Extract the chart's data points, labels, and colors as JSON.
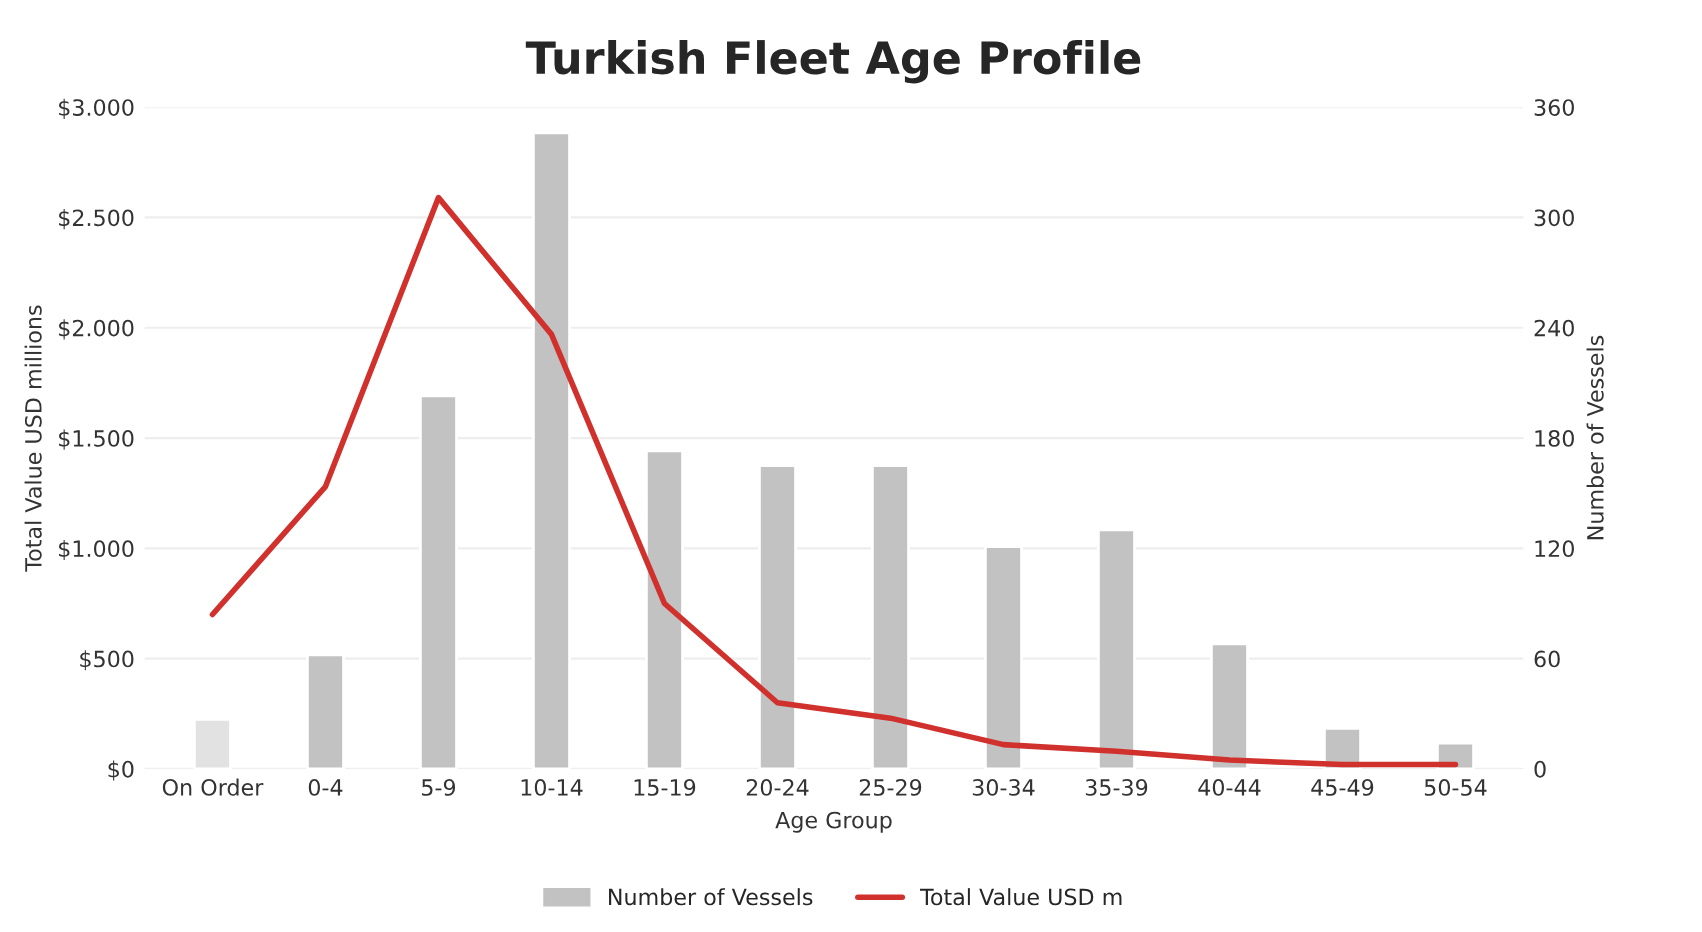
{
  "chart_data": {
    "type": "bar",
    "title": "Turkish Fleet Age Profile",
    "xlabel": "Age Group",
    "ylabel": "Total Value USD millions",
    "y2label": "Number of Vessels",
    "categories": [
      "On Order",
      "0-4",
      "5-9",
      "10-14",
      "15-19",
      "20-24",
      "25-29",
      "30-34",
      "35-39",
      "40-44",
      "45-49",
      "50-54"
    ],
    "series": [
      {
        "name": "Number of Vessels",
        "axis": "y2",
        "color": "#c2c2c2",
        "colors": [
          "#e2e2e2",
          "#c2c2c2",
          "#c2c2c2",
          "#c2c2c2",
          "#c2c2c2",
          "#c2c2c2",
          "#c2c2c2",
          "#c2c2c2",
          "#c2c2c2",
          "#c2c2c2",
          "#c2c2c2",
          "#c2c2c2"
        ],
        "values": [
          27,
          62,
          203,
          346,
          173,
          165,
          165,
          121,
          130,
          68,
          22,
          14
        ]
      },
      {
        "name": "Total Value USD m",
        "type": "line",
        "color": "#d0312d",
        "values": [
          700,
          1280,
          2590,
          1970,
          750,
          300,
          230,
          110,
          80,
          40,
          20,
          20
        ]
      }
    ],
    "ylim": [
      0,
      3000
    ],
    "yticks": [
      {
        "value": 0,
        "label": "$0"
      },
      {
        "value": 500,
        "label": "$500"
      },
      {
        "value": 1000,
        "label": "$1.000"
      },
      {
        "value": 1500,
        "label": "$1.500"
      },
      {
        "value": 2000,
        "label": "$2.000"
      },
      {
        "value": 2500,
        "label": "$2.500"
      },
      {
        "value": 3000,
        "label": "$3.000"
      }
    ],
    "y2lim": [
      0,
      360
    ],
    "y2ticks": [
      0,
      60,
      120,
      180,
      240,
      300,
      360
    ],
    "grid": "y",
    "legend": "bottom",
    "marker": "none",
    "line_style": "solid"
  }
}
